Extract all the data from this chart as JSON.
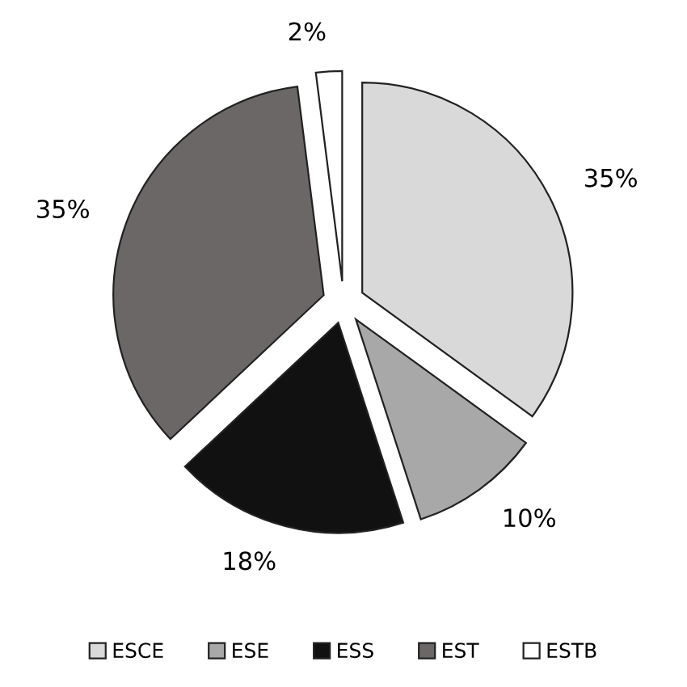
{
  "chart_data": {
    "type": "pie",
    "categories": [
      "ESCE",
      "ESE",
      "ESS",
      "EST",
      "ESTB"
    ],
    "values": [
      35,
      10,
      18,
      35,
      2
    ],
    "value_labels": [
      "35%",
      "10%",
      "18%",
      "35%",
      "2%"
    ],
    "colors": [
      "#d9d9d9",
      "#a8a8a8",
      "#111111",
      "#6b6767",
      "#ffffff"
    ],
    "legend": "bottom"
  }
}
